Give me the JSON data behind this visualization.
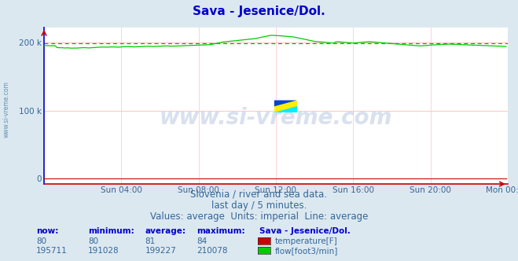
{
  "title": "Sava - Jesenice/Dol.",
  "title_color": "#0000cc",
  "bg_color": "#dce8f0",
  "plot_bg_color": "#ffffff",
  "grid_color": "#ffbbbb",
  "grid_vcolor": "#ffcccc",
  "left_spine_color": "#0000cc",
  "bottom_spine_color": "#cc0000",
  "tick_label_color": "#336699",
  "ylabel_ticks": [
    0,
    100000,
    200000
  ],
  "ylabel_labels": [
    "0",
    "100 k",
    "200 k"
  ],
  "ylim": [
    -8000,
    222000
  ],
  "xlim": [
    0,
    288
  ],
  "xtick_positions": [
    48,
    96,
    144,
    192,
    240,
    288
  ],
  "xtick_labels": [
    "Sun 04:00",
    "Sun 08:00",
    "Sun 12:00",
    "Sun 16:00",
    "Sun 20:00",
    "Mon 00:00"
  ],
  "avg_line_value": 199227,
  "avg_line_color": "#00bb00",
  "flow_color": "#00cc00",
  "temp_color": "#cc0000",
  "watermark_text": "www.si-vreme.com",
  "watermark_color": "#4466aa",
  "left_label_text": "www.si-vreme.com",
  "left_label_color": "#336699",
  "footer_lines": [
    "Slovenia / river and sea data.",
    "last day / 5 minutes.",
    "Values: average  Units: imperial  Line: average"
  ],
  "footer_color": "#336699",
  "footer_fontsize": 8.5,
  "table_header_labels": [
    "now:",
    "minimum:",
    "average:",
    "maximum:",
    "Sava - Jesenice/Dol."
  ],
  "table_header_color": "#0000cc",
  "table_row1_vals": [
    "80",
    "80",
    "81",
    "84"
  ],
  "table_row2_vals": [
    "195711",
    "191028",
    "199227",
    "210078"
  ],
  "table_label1": "temperature[F]",
  "table_label2": "flow[foot3/min]",
  "table_val_color": "#336699",
  "legend_box1_color": "#cc0000",
  "legend_box2_color": "#00cc00",
  "logo_yellow": "#ffee00",
  "logo_cyan": "#00eeff",
  "logo_blue": "#0044cc",
  "flow_data": [
    195000,
    195100,
    195200,
    195100,
    195000,
    194800,
    194900,
    195000,
    192500,
    192300,
    192100,
    192200,
    192000,
    191800,
    191900,
    192000,
    191700,
    191500,
    191600,
    191700,
    191600,
    191800,
    192000,
    192100,
    192200,
    192300,
    192100,
    192000,
    191900,
    192100,
    192300,
    192500,
    192700,
    192800,
    192900,
    193000,
    193100,
    193200,
    193100,
    193000,
    193100,
    193200,
    193300,
    193400,
    193200,
    193100,
    193000,
    193200,
    193400,
    193500,
    193600,
    193700,
    193800,
    193700,
    193600,
    193500,
    193400,
    193500,
    193600,
    193700,
    193800,
    193900,
    194000,
    194100,
    194200,
    194300,
    194200,
    194100,
    194000,
    194100,
    194200,
    194300,
    194400,
    194500,
    194600,
    194700,
    194800,
    194700,
    194600,
    194500,
    194400,
    194500,
    194600,
    194700,
    194800,
    194900,
    195000,
    195100,
    195200,
    195300,
    195400,
    195500,
    195600,
    195700,
    195800,
    195900,
    196000,
    196100,
    196200,
    196300,
    196400,
    196500,
    196600,
    196700,
    197000,
    197500,
    198000,
    198500,
    199000,
    199500,
    200000,
    200500,
    200800,
    201000,
    201200,
    201500,
    201800,
    202000,
    202200,
    202500,
    202800,
    203000,
    203200,
    203500,
    203800,
    204000,
    204200,
    204500,
    204800,
    205000,
    205200,
    205500,
    206000,
    206500,
    207000,
    207500,
    208000,
    208500,
    209000,
    209500,
    210000,
    210200,
    210300,
    210200,
    210100,
    210000,
    209800,
    209600,
    209400,
    209200,
    209000,
    208800,
    208600,
    208400,
    208200,
    208000,
    207500,
    207000,
    206500,
    206000,
    205500,
    205000,
    204500,
    204000,
    203500,
    203000,
    202500,
    202000,
    201500,
    201200,
    201000,
    200800,
    200600,
    200400,
    200200,
    200000,
    199800,
    199600,
    199400,
    199200,
    199000,
    200500,
    201000,
    200800,
    200600,
    200400,
    200200,
    200000,
    199800,
    199600,
    199400,
    199200,
    199000,
    199200,
    199400,
    199600,
    199800,
    200000,
    200200,
    200400,
    200600,
    200800,
    201000,
    200800,
    200600,
    200400,
    200200,
    200000,
    199800,
    199600,
    199400,
    199200,
    199000,
    198800,
    198600,
    198400,
    198200,
    198000,
    197800,
    197600,
    197400,
    197200,
    197000,
    196800,
    196600,
    196400,
    196200,
    196000,
    195800,
    195600,
    195400,
    195200,
    195000,
    194900,
    194800,
    195000,
    195200,
    195400,
    195600,
    195800,
    196000,
    196200,
    196400,
    196600,
    196700,
    196800,
    196900,
    197000,
    197100,
    197200,
    197300,
    197400,
    197500,
    197400,
    197300,
    197200,
    197100,
    197000,
    196900,
    196800,
    196700,
    196600,
    196500,
    196400,
    196300,
    196200,
    196100,
    196000,
    195900,
    195800,
    195700,
    195600,
    195500,
    195400,
    195300,
    195200,
    195100,
    195000,
    194900,
    194800,
    194700,
    194600,
    194500,
    194400,
    194300,
    194200,
    194100,
    194000
  ]
}
